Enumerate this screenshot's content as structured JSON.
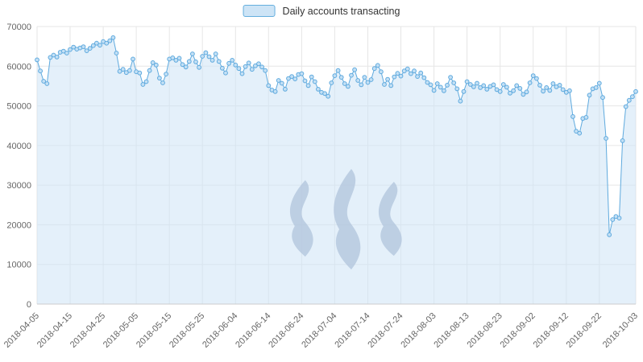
{
  "legend": {
    "label": "Daily accounts transacting"
  },
  "chart_data": {
    "type": "area",
    "title": "",
    "legend_entries": [
      "Daily accounts transacting"
    ],
    "legend_position": "top-center",
    "grid": true,
    "x_start_date": "2018-04-05",
    "x_tick_labels": [
      "2018-04-05",
      "2018-04-15",
      "2018-04-25",
      "2018-05-05",
      "2018-05-15",
      "2018-05-25",
      "2018-06-04",
      "2018-06-14",
      "2018-06-24",
      "2018-07-04",
      "2018-07-14",
      "2018-07-24",
      "2018-08-03",
      "2018-08-13",
      "2018-08-23",
      "2018-09-02",
      "2018-09-12",
      "2018-09-22",
      "2018-10-03"
    ],
    "x_tick_day_index": [
      0,
      10,
      20,
      30,
      40,
      50,
      60,
      70,
      80,
      90,
      100,
      110,
      120,
      130,
      140,
      150,
      160,
      170,
      181
    ],
    "y_ticks": [
      0,
      10000,
      20000,
      30000,
      40000,
      50000,
      60000,
      70000
    ],
    "ylim": [
      0,
      70000
    ],
    "xlabel": "",
    "ylabel": "",
    "colors": {
      "line": "#5faade",
      "marker_fill": "#c4e0f5",
      "area": "#cde4f6",
      "grid": "#e6e6e6",
      "axis": "#cccccc",
      "watermark": "#b4c7de"
    },
    "series": [
      {
        "name": "Daily accounts transacting",
        "frequency": "daily",
        "values": [
          61600,
          58800,
          56200,
          55600,
          62200,
          62800,
          62300,
          63500,
          63800,
          63300,
          64200,
          64800,
          64300,
          64600,
          64900,
          63900,
          64500,
          65200,
          65800,
          65300,
          66200,
          65800,
          66400,
          67200,
          63300,
          58700,
          59200,
          58400,
          58900,
          61800,
          58600,
          58300,
          55400,
          56100,
          58900,
          60900,
          60300,
          57000,
          55800,
          58000,
          61800,
          62100,
          61500,
          62000,
          60400,
          59800,
          61200,
          63100,
          61100,
          59700,
          62500,
          63400,
          62400,
          61500,
          63100,
          61200,
          59500,
          58300,
          60700,
          61500,
          60300,
          59400,
          58100,
          59900,
          60800,
          59200,
          60100,
          60600,
          59800,
          58900,
          55100,
          54000,
          53600,
          56400,
          55700,
          54200,
          56900,
          57400,
          56800,
          57900,
          58100,
          56300,
          55100,
          57300,
          56100,
          54200,
          53400,
          53100,
          52400,
          55800,
          57600,
          58900,
          57200,
          55600,
          54900,
          57700,
          59100,
          56400,
          55300,
          57200,
          55900,
          56600,
          59400,
          60200,
          58600,
          55400,
          56700,
          55100,
          57300,
          58200,
          57500,
          58800,
          59300,
          58100,
          58800,
          57400,
          58300,
          57100,
          55900,
          55300,
          53900,
          55600,
          54700,
          53800,
          55200,
          57200,
          55800,
          54300,
          51200,
          53600,
          56100,
          55400,
          54800,
          55700,
          54600,
          55100,
          54200,
          54900,
          55300,
          54100,
          53600,
          55400,
          54700,
          53200,
          53800,
          55100,
          54400,
          52900,
          53500,
          55800,
          57600,
          56900,
          55200,
          53700,
          54600,
          53900,
          55600,
          54800,
          55200,
          54100,
          53400,
          53800,
          47300,
          43600,
          43100,
          46800,
          47100,
          52700,
          54300,
          54600,
          55700,
          52100,
          41800,
          17500,
          21300,
          22100,
          21700,
          41200,
          49800,
          51400,
          52300,
          53600
        ]
      }
    ]
  }
}
